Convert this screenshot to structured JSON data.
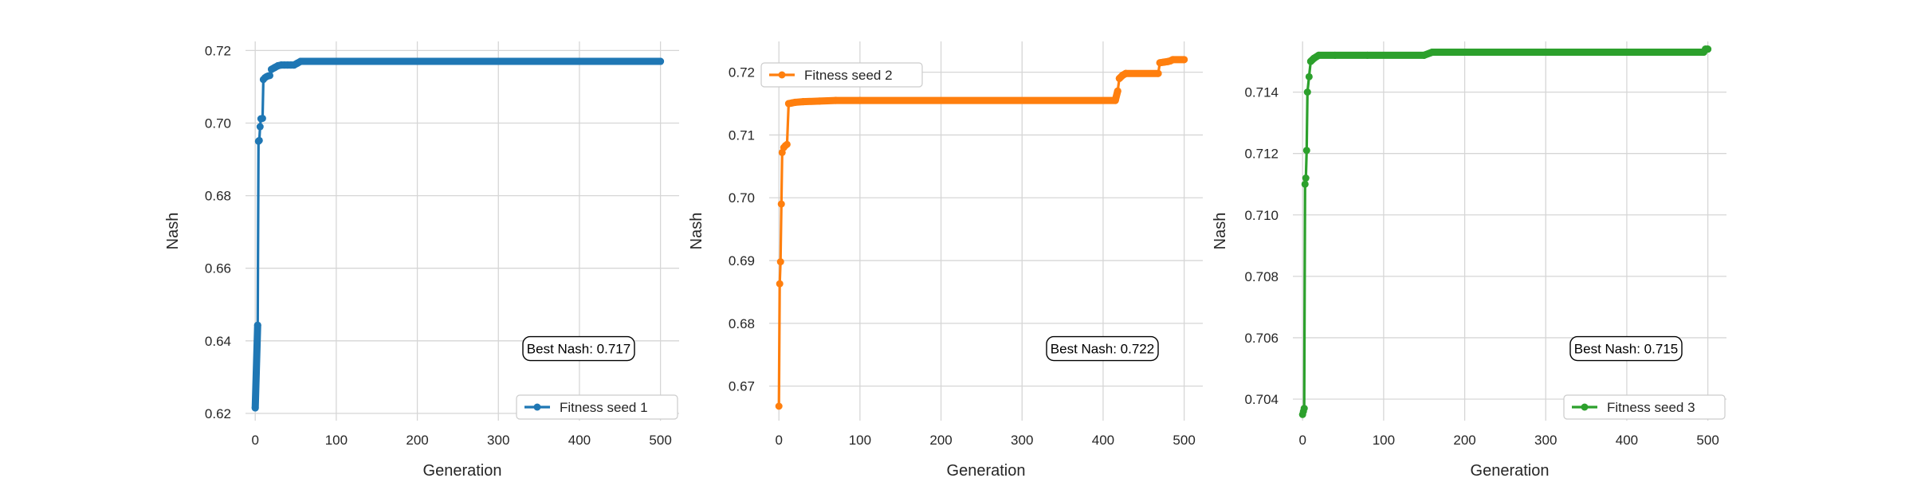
{
  "chart_data": [
    {
      "type": "line",
      "xlabel": "Generation",
      "ylabel": "Nash",
      "xlim": [
        -12,
        523
      ],
      "ylim": [
        0.618,
        0.7225
      ],
      "x_ticks": [
        0,
        100,
        200,
        300,
        400,
        500
      ],
      "x_tick_labels": [
        "0",
        "100",
        "200",
        "300",
        "400",
        "500"
      ],
      "y_ticks": [
        0.62,
        0.64,
        0.66,
        0.68,
        0.7,
        0.72
      ],
      "y_tick_labels": [
        "0.62",
        "0.64",
        "0.66",
        "0.68",
        "0.70",
        "0.72"
      ],
      "grid": true,
      "legend_position": "bottom-right",
      "annotation": "Best Nash: 0.717",
      "series": [
        {
          "name": "Fitness seed 1",
          "color": "#1f77b4",
          "points": [
            [
              0,
              0.6215
            ],
            [
              3,
              0.6443
            ],
            [
              4,
              0.695
            ],
            [
              5,
              0.6952
            ],
            [
              6,
              0.699
            ],
            [
              7,
              0.7012
            ],
            [
              9,
              0.7013
            ],
            [
              10,
              0.712
            ],
            [
              12,
              0.7125
            ],
            [
              14,
              0.7128
            ],
            [
              16,
              0.713
            ],
            [
              18,
              0.7131
            ],
            [
              20,
              0.7148
            ],
            [
              24,
              0.7153
            ],
            [
              28,
              0.7158
            ],
            [
              32,
              0.716
            ],
            [
              36,
              0.716
            ],
            [
              40,
              0.716
            ],
            [
              44,
              0.716
            ],
            [
              48,
              0.716
            ],
            [
              52,
              0.7165
            ],
            [
              56,
              0.717
            ],
            [
              60,
              0.717
            ],
            [
              500,
              0.717
            ]
          ]
        }
      ]
    },
    {
      "type": "line",
      "xlabel": "Generation",
      "ylabel": "Nash",
      "xlim": [
        -12,
        523
      ],
      "ylim": [
        0.6645,
        0.7249
      ],
      "x_ticks": [
        0,
        100,
        200,
        300,
        400,
        500
      ],
      "x_tick_labels": [
        "0",
        "100",
        "200",
        "300",
        "400",
        "500"
      ],
      "y_ticks": [
        0.67,
        0.68,
        0.69,
        0.7,
        0.71,
        0.72
      ],
      "y_tick_labels": [
        "0.67",
        "0.68",
        "0.69",
        "0.70",
        "0.71",
        "0.72"
      ],
      "grid": true,
      "legend_position": "top-left",
      "annotation": "Best Nash: 0.722",
      "series": [
        {
          "name": "Fitness seed 2",
          "color": "#ff7f0e",
          "points": [
            [
              0,
              0.6668
            ],
            [
              1,
              0.6863
            ],
            [
              2,
              0.6898
            ],
            [
              3,
              0.699
            ],
            [
              4,
              0.7072
            ],
            [
              6,
              0.708
            ],
            [
              8,
              0.7083
            ],
            [
              10,
              0.7085
            ],
            [
              12,
              0.715
            ],
            [
              16,
              0.7151
            ],
            [
              20,
              0.7152
            ],
            [
              30,
              0.7153
            ],
            [
              50,
              0.7154
            ],
            [
              70,
              0.7155
            ],
            [
              100,
              0.7155
            ],
            [
              415,
              0.7155
            ],
            [
              418,
              0.717
            ],
            [
              420,
              0.719
            ],
            [
              424,
              0.7195
            ],
            [
              428,
              0.7198
            ],
            [
              468,
              0.7198
            ],
            [
              470,
              0.7215
            ],
            [
              475,
              0.7216
            ],
            [
              480,
              0.7217
            ],
            [
              483,
              0.7218
            ],
            [
              486,
              0.722
            ],
            [
              500,
              0.722
            ]
          ]
        }
      ]
    },
    {
      "type": "line",
      "xlabel": "Generation",
      "ylabel": "Nash",
      "xlim": [
        -12,
        523
      ],
      "ylim": [
        0.7033,
        0.71565
      ],
      "x_ticks": [
        0,
        100,
        200,
        300,
        400,
        500
      ],
      "x_tick_labels": [
        "0",
        "100",
        "200",
        "300",
        "400",
        "500"
      ],
      "y_ticks": [
        0.704,
        0.706,
        0.708,
        0.71,
        0.712,
        0.714
      ],
      "y_tick_labels": [
        "0.704",
        "0.706",
        "0.708",
        "0.710",
        "0.712",
        "0.714"
      ],
      "grid": true,
      "legend_position": "bottom-right",
      "annotation": "Best Nash: 0.715",
      "series": [
        {
          "name": "Fitness seed 3",
          "color": "#2ca02c",
          "points": [
            [
              0,
              0.7035
            ],
            [
              1,
              0.7036
            ],
            [
              2,
              0.7037
            ],
            [
              3,
              0.711
            ],
            [
              4,
              0.7112
            ],
            [
              5,
              0.7121
            ],
            [
              6,
              0.714
            ],
            [
              8,
              0.7145
            ],
            [
              10,
              0.715
            ],
            [
              14,
              0.7151
            ],
            [
              20,
              0.7152
            ],
            [
              40,
              0.7152
            ],
            [
              80,
              0.7152
            ],
            [
              150,
              0.7152
            ],
            [
              160,
              0.7153
            ],
            [
              290,
              0.7153
            ],
            [
              300,
              0.7153
            ],
            [
              495,
              0.7153
            ],
            [
              497,
              0.7154
            ],
            [
              500,
              0.7154
            ]
          ]
        }
      ]
    }
  ]
}
